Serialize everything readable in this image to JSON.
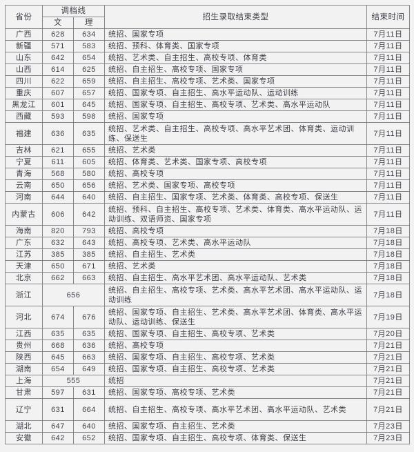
{
  "chart_data": {
    "type": "table",
    "title": "",
    "header": {
      "province": "省份",
      "score_line": "调档线",
      "wen": "文",
      "li": "理",
      "types": "招生录取结束类型",
      "end_time": "结束时间"
    },
    "rows": [
      {
        "province": "广西",
        "wen": "628",
        "li": "634",
        "types": "统招、国家专项",
        "end": "7月11日"
      },
      {
        "province": "新疆",
        "wen": "571",
        "li": "583",
        "types": "统招、预科、体育类、国家专项",
        "end": "7月11日"
      },
      {
        "province": "山东",
        "wen": "642",
        "li": "654",
        "types": "统招、艺术类、自主招生、高校专项、体育类",
        "end": "7月11日"
      },
      {
        "province": "山西",
        "wen": "614",
        "li": "625",
        "types": "统招、自主招生、高校专项、国家专项",
        "end": "7月11日"
      },
      {
        "province": "四川",
        "wen": "622",
        "li": "659",
        "types": "统招、自主招生、高校专项、艺术类、国家专项",
        "end": "7月11日"
      },
      {
        "province": "重庆",
        "wen": "607",
        "li": "657",
        "types": "统招、国家专项、自主招生、高水平运动队、运动训练",
        "end": "7月11日"
      },
      {
        "province": "黑龙江",
        "wen": "601",
        "li": "645",
        "types": "统招、国家专项、自主招生、高校专项、艺术类、高水平运动队",
        "end": "7月11日"
      },
      {
        "province": "西藏",
        "wen": "593",
        "li": "598",
        "types": "统招、国家专项",
        "end": "7月11日"
      },
      {
        "province": "福建",
        "wen": "636",
        "li": "635",
        "types": "统招、艺术类、自主招生、高校专项、高水平艺术团、体育类、运动训练、保送生",
        "end": "7月11日"
      },
      {
        "province": "吉林",
        "wen": "621",
        "li": "655",
        "types": "统招、艺术类",
        "end": "7月11日"
      },
      {
        "province": "宁夏",
        "wen": "611",
        "li": "605",
        "types": "统招、体育类、艺术类、国家专项、高校专项",
        "end": "7月11日"
      },
      {
        "province": "青海",
        "wen": "568",
        "li": "580",
        "types": "统招、高校专项",
        "end": "7月11日"
      },
      {
        "province": "云南",
        "wen": "650",
        "li": "656",
        "types": "统招、艺术类、国家专项、高校专项",
        "end": "7月11日"
      },
      {
        "province": "河南",
        "wen": "644",
        "li": "640",
        "types": "统招、自主招生、国家专项、艺术类、体育类、高校专项、保送生",
        "end": "7月11日"
      },
      {
        "province": "内蒙古",
        "wen": "606",
        "li": "642",
        "types": "统招、预科、自主招生、高校专项、艺术类、体育类、高水平运动队、运动训练、双语师资、国家专项",
        "end": "7月11日"
      },
      {
        "province": "海南",
        "wen": "820",
        "li": "793",
        "types": "统招、高校专项",
        "end": "7月18日"
      },
      {
        "province": "广东",
        "wen": "632",
        "li": "643",
        "types": "统招、高校专项、艺术类、高水平运动队",
        "end": "7月18日"
      },
      {
        "province": "江苏",
        "wen": "385",
        "li": "385",
        "types": "统招、自主招生、艺术类",
        "end": "7月18日"
      },
      {
        "province": "天津",
        "wen": "650",
        "li": "671",
        "types": "统招、艺术类",
        "end": "7月18日"
      },
      {
        "province": "北京",
        "wen": "662",
        "li": "663",
        "types": "统招、自主招生、高水平艺术团、高水平运动队、艺术类",
        "end": "7月18日"
      },
      {
        "province": "浙江",
        "score": "656",
        "types": "统招、自主招生、高校专项、艺术类、高水平艺术团、高水平运动队、运动训练",
        "end": "7月18日"
      },
      {
        "province": "河北",
        "wen": "674",
        "li": "676",
        "types": "统招、国家专项、自主招生、艺术类、高水平艺术团、体育类、高水平运动队、运动训练、保送生",
        "end": "7月19日"
      },
      {
        "province": "江西",
        "wen": "635",
        "li": "635",
        "types": "统招、国家专项、自主招生、高校专项、艺术类",
        "end": "7月20日"
      },
      {
        "province": "贵州",
        "wen": "668",
        "li": "636",
        "types": "统招、高校专项",
        "end": "7月21日"
      },
      {
        "province": "陕西",
        "wen": "645",
        "li": "663",
        "types": "统招、国家专项、自主招生、高校专项、艺术类",
        "end": "7月21日"
      },
      {
        "province": "湖南",
        "wen": "654",
        "li": "649",
        "types": "统招、国家专项、自主招生、高校专项、艺术类",
        "end": "7月21日"
      },
      {
        "province": "上海",
        "score": "555",
        "types": "统招",
        "end": "7月21日"
      },
      {
        "province": "甘肃",
        "wen": "597",
        "li": "631",
        "types": "统招、国家专项、高校专项、艺术类",
        "end": "7月21日"
      },
      {
        "province": "辽宁",
        "wen": "631",
        "li": "664",
        "types": "统招、自主招生、高校专项、高水平艺术团、高水平运动队、艺术类",
        "end": "7月21日"
      },
      {
        "province": "湖北",
        "wen": "647",
        "li": "640",
        "types": "统招、国家专项、自主招生、艺术类",
        "end": "7月23日"
      },
      {
        "province": "安徽",
        "wen": "642",
        "li": "652",
        "types": "统招、国家专项、自主招生、高校专项、体育类、保送生",
        "end": "7月23日"
      }
    ]
  },
  "colors": {
    "background": "#f2f2f3",
    "border": "#85858a",
    "text": "#3e3e46"
  }
}
